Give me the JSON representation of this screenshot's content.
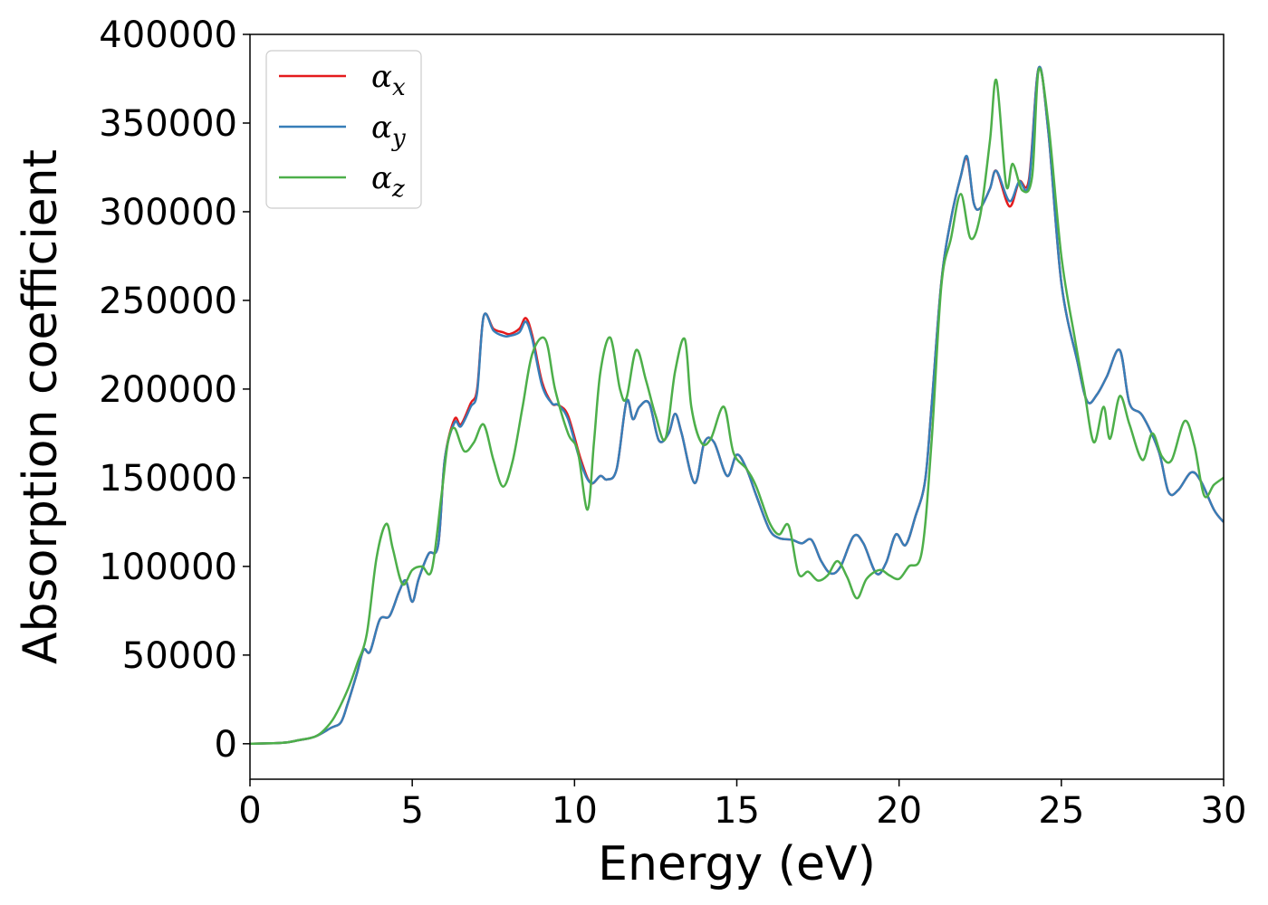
{
  "chart_data": {
    "type": "line",
    "title": "",
    "xlabel": "Energy (eV)",
    "ylabel": "Absorption coefficient",
    "xlim": [
      0,
      30
    ],
    "ylim": [
      -20000,
      400000
    ],
    "xticks": [
      0,
      5,
      10,
      15,
      20,
      25,
      30
    ],
    "yticks": [
      0,
      50000,
      100000,
      150000,
      200000,
      250000,
      300000,
      350000,
      400000
    ],
    "grid": false,
    "legend_position": "top-left",
    "series": [
      {
        "name": "αx",
        "label_base": "α",
        "label_sub": "x",
        "color": "#e41a1c",
        "points": [
          [
            0,
            0
          ],
          [
            1,
            500
          ],
          [
            1.5,
            2000
          ],
          [
            2,
            4000
          ],
          [
            2.5,
            9000
          ],
          [
            2.8,
            12000
          ],
          [
            3,
            22000
          ],
          [
            3.3,
            40000
          ],
          [
            3.5,
            53000
          ],
          [
            3.7,
            52000
          ],
          [
            4,
            70000
          ],
          [
            4.3,
            72000
          ],
          [
            4.6,
            86000
          ],
          [
            4.8,
            92000
          ],
          [
            5,
            80000
          ],
          [
            5.2,
            93000
          ],
          [
            5.5,
            107000
          ],
          [
            5.8,
            112000
          ],
          [
            6,
            160000
          ],
          [
            6.3,
            183000
          ],
          [
            6.5,
            180000
          ],
          [
            6.8,
            192000
          ],
          [
            7,
            200000
          ],
          [
            7.2,
            241000
          ],
          [
            7.5,
            234000
          ],
          [
            7.8,
            232000
          ],
          [
            8,
            231000
          ],
          [
            8.3,
            234000
          ],
          [
            8.5,
            240000
          ],
          [
            8.7,
            230000
          ],
          [
            9,
            204000
          ],
          [
            9.3,
            192000
          ],
          [
            9.5,
            191000
          ],
          [
            9.8,
            185000
          ],
          [
            10.2,
            160000
          ],
          [
            10.5,
            147000
          ],
          [
            10.8,
            151000
          ],
          [
            11,
            149000
          ],
          [
            11.3,
            155000
          ],
          [
            11.6,
            193000
          ],
          [
            11.8,
            183000
          ],
          [
            12,
            190000
          ],
          [
            12.3,
            192000
          ],
          [
            12.6,
            171000
          ],
          [
            12.9,
            175000
          ],
          [
            13.1,
            186000
          ],
          [
            13.3,
            175000
          ],
          [
            13.7,
            147000
          ],
          [
            14,
            170000
          ],
          [
            14.3,
            170000
          ],
          [
            14.7,
            151000
          ],
          [
            15,
            163000
          ],
          [
            15.3,
            155000
          ],
          [
            15.6,
            140000
          ],
          [
            16,
            121000
          ],
          [
            16.3,
            116000
          ],
          [
            16.7,
            115000
          ],
          [
            17,
            113000
          ],
          [
            17.3,
            115000
          ],
          [
            17.6,
            103000
          ],
          [
            17.9,
            96000
          ],
          [
            18.2,
            100000
          ],
          [
            18.6,
            117000
          ],
          [
            18.9,
            113000
          ],
          [
            19.3,
            96000
          ],
          [
            19.6,
            102000
          ],
          [
            19.9,
            118000
          ],
          [
            20.2,
            112000
          ],
          [
            20.5,
            128000
          ],
          [
            20.8,
            148000
          ],
          [
            21,
            190000
          ],
          [
            21.3,
            260000
          ],
          [
            21.6,
            296000
          ],
          [
            21.9,
            320000
          ],
          [
            22.1,
            330000
          ],
          [
            22.3,
            305000
          ],
          [
            22.5,
            302000
          ],
          [
            22.8,
            313000
          ],
          [
            23,
            323000
          ],
          [
            23.4,
            303000
          ],
          [
            23.7,
            317000
          ],
          [
            24,
            318000
          ],
          [
            24.3,
            381000
          ],
          [
            24.6,
            345000
          ],
          [
            25,
            260000
          ],
          [
            25.5,
            215000
          ],
          [
            25.8,
            193000
          ],
          [
            26.1,
            197000
          ],
          [
            26.4,
            207000
          ],
          [
            26.8,
            222000
          ],
          [
            27.1,
            192000
          ],
          [
            27.5,
            185000
          ],
          [
            28,
            165000
          ],
          [
            28.3,
            142000
          ],
          [
            28.6,
            143000
          ],
          [
            29,
            153000
          ],
          [
            29.3,
            148000
          ],
          [
            29.7,
            132000
          ],
          [
            30,
            125000
          ]
        ]
      },
      {
        "name": "αy",
        "label_base": "α",
        "label_sub": "y",
        "color": "#377eb8",
        "points": [
          [
            0,
            0
          ],
          [
            1,
            500
          ],
          [
            1.5,
            2000
          ],
          [
            2,
            4000
          ],
          [
            2.5,
            9000
          ],
          [
            2.8,
            12000
          ],
          [
            3,
            22000
          ],
          [
            3.3,
            40000
          ],
          [
            3.5,
            53000
          ],
          [
            3.7,
            52000
          ],
          [
            4,
            70000
          ],
          [
            4.3,
            72000
          ],
          [
            4.6,
            86000
          ],
          [
            4.8,
            92000
          ],
          [
            5,
            80000
          ],
          [
            5.2,
            93000
          ],
          [
            5.5,
            107000
          ],
          [
            5.8,
            112000
          ],
          [
            6,
            160000
          ],
          [
            6.3,
            181000
          ],
          [
            6.5,
            179000
          ],
          [
            6.8,
            190000
          ],
          [
            7,
            198000
          ],
          [
            7.2,
            241000
          ],
          [
            7.5,
            233000
          ],
          [
            7.8,
            230000
          ],
          [
            8,
            230000
          ],
          [
            8.3,
            232000
          ],
          [
            8.5,
            238000
          ],
          [
            8.7,
            228000
          ],
          [
            9,
            202000
          ],
          [
            9.3,
            192000
          ],
          [
            9.5,
            191000
          ],
          [
            9.8,
            183000
          ],
          [
            10.2,
            158000
          ],
          [
            10.5,
            147000
          ],
          [
            10.8,
            151000
          ],
          [
            11,
            149000
          ],
          [
            11.3,
            155000
          ],
          [
            11.6,
            193000
          ],
          [
            11.8,
            183000
          ],
          [
            12,
            190000
          ],
          [
            12.3,
            192000
          ],
          [
            12.6,
            171000
          ],
          [
            12.9,
            175000
          ],
          [
            13.1,
            186000
          ],
          [
            13.3,
            175000
          ],
          [
            13.7,
            147000
          ],
          [
            14,
            170000
          ],
          [
            14.3,
            170000
          ],
          [
            14.7,
            151000
          ],
          [
            15,
            163000
          ],
          [
            15.3,
            155000
          ],
          [
            15.6,
            140000
          ],
          [
            16,
            121000
          ],
          [
            16.3,
            116000
          ],
          [
            16.7,
            115000
          ],
          [
            17,
            113000
          ],
          [
            17.3,
            115000
          ],
          [
            17.6,
            103000
          ],
          [
            17.9,
            96000
          ],
          [
            18.2,
            100000
          ],
          [
            18.6,
            117000
          ],
          [
            18.9,
            113000
          ],
          [
            19.3,
            96000
          ],
          [
            19.6,
            102000
          ],
          [
            19.9,
            118000
          ],
          [
            20.2,
            112000
          ],
          [
            20.5,
            128000
          ],
          [
            20.8,
            148000
          ],
          [
            21,
            190000
          ],
          [
            21.3,
            260000
          ],
          [
            21.6,
            296000
          ],
          [
            21.9,
            320000
          ],
          [
            22.1,
            331000
          ],
          [
            22.3,
            305000
          ],
          [
            22.5,
            302000
          ],
          [
            22.8,
            313000
          ],
          [
            23,
            323000
          ],
          [
            23.4,
            306000
          ],
          [
            23.7,
            317000
          ],
          [
            24,
            316000
          ],
          [
            24.3,
            381000
          ],
          [
            24.6,
            345000
          ],
          [
            25,
            260000
          ],
          [
            25.5,
            215000
          ],
          [
            25.8,
            193000
          ],
          [
            26.1,
            197000
          ],
          [
            26.4,
            207000
          ],
          [
            26.8,
            222000
          ],
          [
            27.1,
            192000
          ],
          [
            27.5,
            185000
          ],
          [
            28,
            165000
          ],
          [
            28.3,
            142000
          ],
          [
            28.6,
            143000
          ],
          [
            29,
            153000
          ],
          [
            29.3,
            148000
          ],
          [
            29.7,
            132000
          ],
          [
            30,
            125000
          ]
        ]
      },
      {
        "name": "αz",
        "label_base": "α",
        "label_sub": "z",
        "color": "#4daf4a",
        "points": [
          [
            0,
            0
          ],
          [
            1,
            500
          ],
          [
            1.5,
            2000
          ],
          [
            2,
            4000
          ],
          [
            2.3,
            8000
          ],
          [
            2.6,
            15000
          ],
          [
            3,
            30000
          ],
          [
            3.3,
            45000
          ],
          [
            3.6,
            62000
          ],
          [
            3.9,
            105000
          ],
          [
            4.2,
            124000
          ],
          [
            4.4,
            110000
          ],
          [
            4.7,
            90000
          ],
          [
            5,
            98000
          ],
          [
            5.3,
            100000
          ],
          [
            5.6,
            98000
          ],
          [
            5.9,
            140000
          ],
          [
            6.1,
            170000
          ],
          [
            6.3,
            178000
          ],
          [
            6.6,
            165000
          ],
          [
            6.9,
            170000
          ],
          [
            7.2,
            180000
          ],
          [
            7.5,
            160000
          ],
          [
            7.8,
            145000
          ],
          [
            8.1,
            160000
          ],
          [
            8.4,
            190000
          ],
          [
            8.7,
            220000
          ],
          [
            9.1,
            228000
          ],
          [
            9.4,
            200000
          ],
          [
            9.8,
            175000
          ],
          [
            10.1,
            165000
          ],
          [
            10.4,
            132000
          ],
          [
            10.6,
            170000
          ],
          [
            10.8,
            210000
          ],
          [
            11.1,
            229000
          ],
          [
            11.4,
            200000
          ],
          [
            11.6,
            195000
          ],
          [
            11.9,
            222000
          ],
          [
            12.2,
            205000
          ],
          [
            12.5,
            185000
          ],
          [
            12.8,
            172000
          ],
          [
            13.1,
            210000
          ],
          [
            13.4,
            228000
          ],
          [
            13.6,
            190000
          ],
          [
            13.9,
            170000
          ],
          [
            14.2,
            172000
          ],
          [
            14.6,
            190000
          ],
          [
            14.9,
            164000
          ],
          [
            15.3,
            155000
          ],
          [
            15.6,
            145000
          ],
          [
            16,
            125000
          ],
          [
            16.3,
            118000
          ],
          [
            16.6,
            123000
          ],
          [
            16.9,
            96000
          ],
          [
            17.2,
            97000
          ],
          [
            17.5,
            92000
          ],
          [
            17.8,
            95000
          ],
          [
            18.1,
            103000
          ],
          [
            18.4,
            94000
          ],
          [
            18.7,
            82000
          ],
          [
            19,
            93000
          ],
          [
            19.4,
            98000
          ],
          [
            19.7,
            95000
          ],
          [
            20,
            93000
          ],
          [
            20.3,
            100000
          ],
          [
            20.7,
            108000
          ],
          [
            21,
            170000
          ],
          [
            21.3,
            258000
          ],
          [
            21.6,
            285000
          ],
          [
            21.9,
            310000
          ],
          [
            22.2,
            285000
          ],
          [
            22.5,
            298000
          ],
          [
            22.8,
            340000
          ],
          [
            23,
            374000
          ],
          [
            23.3,
            315000
          ],
          [
            23.5,
            327000
          ],
          [
            23.8,
            312000
          ],
          [
            24.1,
            320000
          ],
          [
            24.3,
            380000
          ],
          [
            24.6,
            350000
          ],
          [
            25,
            275000
          ],
          [
            25.4,
            230000
          ],
          [
            25.7,
            200000
          ],
          [
            26,
            170000
          ],
          [
            26.3,
            190000
          ],
          [
            26.5,
            172000
          ],
          [
            26.8,
            196000
          ],
          [
            27.1,
            180000
          ],
          [
            27.5,
            160000
          ],
          [
            27.8,
            175000
          ],
          [
            28.1,
            162000
          ],
          [
            28.4,
            160000
          ],
          [
            28.8,
            182000
          ],
          [
            29.1,
            168000
          ],
          [
            29.4,
            140000
          ],
          [
            29.7,
            146000
          ],
          [
            30,
            150000
          ]
        ]
      }
    ]
  }
}
